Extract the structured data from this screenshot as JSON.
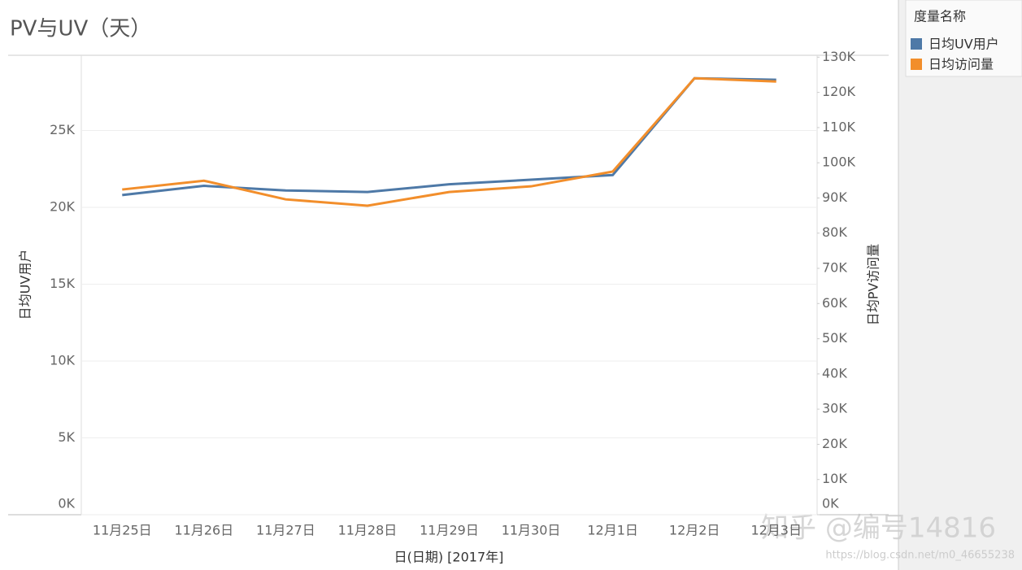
{
  "chart_data": {
    "type": "line",
    "title": "PV与UV（天）",
    "x_label": "日(日期) [2017年]",
    "y_label": "日均UV用户",
    "y2_label": "日均PV访问量",
    "legend_title": "度量名称",
    "legend": "right",
    "grid": true,
    "categories": [
      "11月25日",
      "11月26日",
      "11月27日",
      "11月28日",
      "11月29日",
      "11月30日",
      "12月1日",
      "12月2日",
      "12月3日"
    ],
    "series": [
      {
        "name": "日均UV用户",
        "color": "#4e79a7",
        "values": [
          20800,
          21400,
          21100,
          21000,
          21500,
          21800,
          22100,
          28400,
          28300
        ]
      },
      {
        "name": "日均访问量",
        "color": "#f28e2b",
        "axis": "y2",
        "values": [
          92400,
          94900,
          89600,
          87800,
          91700,
          93300,
          97500,
          124000,
          123100
        ]
      }
    ],
    "ylim": [
      0,
      30000
    ],
    "yticks": [
      {
        "value": 0,
        "label": "0K"
      },
      {
        "value": 5000,
        "label": "5K"
      },
      {
        "value": 10000,
        "label": "10K"
      },
      {
        "value": 15000,
        "label": "15K"
      },
      {
        "value": 20000,
        "label": "20K"
      },
      {
        "value": 25000,
        "label": "25K"
      }
    ],
    "y2lim": [
      0,
      131000
    ],
    "y2ticks": [
      {
        "value": 0,
        "label": "0K"
      },
      {
        "value": 10000,
        "label": "10K"
      },
      {
        "value": 20000,
        "label": "20K"
      },
      {
        "value": 30000,
        "label": "30K"
      },
      {
        "value": 40000,
        "label": "40K"
      },
      {
        "value": 50000,
        "label": "50K"
      },
      {
        "value": 60000,
        "label": "60K"
      },
      {
        "value": 70000,
        "label": "70K"
      },
      {
        "value": 80000,
        "label": "80K"
      },
      {
        "value": 90000,
        "label": "90K"
      },
      {
        "value": 100000,
        "label": "100K"
      },
      {
        "value": 110000,
        "label": "110K"
      },
      {
        "value": 120000,
        "label": "120K"
      },
      {
        "value": 130000,
        "label": "130K"
      }
    ],
    "watermark": "知乎 @编号14816",
    "watermark_url": "https://blog.csdn.net/m0_46655238"
  }
}
